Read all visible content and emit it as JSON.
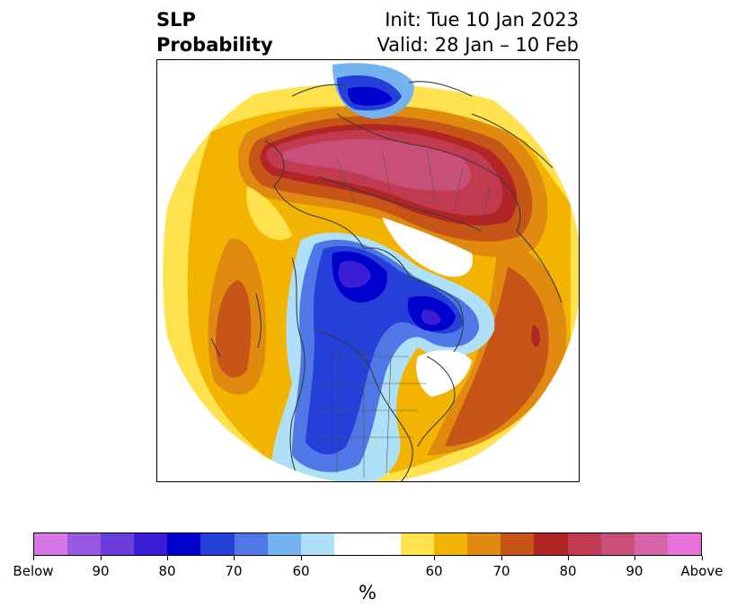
{
  "title": {
    "left_line1": "SLP",
    "left_line2": "Probability",
    "right_line1": "Init: Tue 10 Jan 2023",
    "right_line2": "Valid: 28 Jan – 10 Feb"
  },
  "map": {
    "description_regions": [
      "North America",
      "Arctic",
      "Eurasia"
    ],
    "projection": "polar-stereographic"
  },
  "colorbar": {
    "unit_label": "%",
    "colors": [
      "#d676e6",
      "#9a57e0",
      "#6a3ddb",
      "#3a1ed6",
      "#0000cc",
      "#2440d8",
      "#4f78e6",
      "#75b2f0",
      "#aee0f8",
      "#ffffff",
      "#ffffff",
      "#ffe24d",
      "#f2b400",
      "#e08a10",
      "#c85518",
      "#b22525",
      "#c23a50",
      "#c84f78",
      "#d864a8",
      "#e872dc"
    ],
    "tick_labels": [
      "Below",
      "90",
      "80",
      "70",
      "60",
      "60",
      "70",
      "80",
      "90",
      "Above"
    ]
  }
}
